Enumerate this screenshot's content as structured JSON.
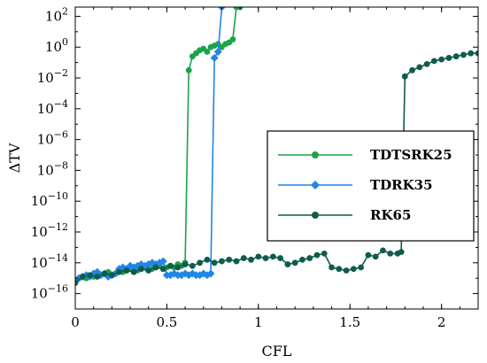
{
  "chart_data": {
    "type": "line",
    "title": "",
    "xlabel": "CFL",
    "ylabel": "ΔTV",
    "xlim": [
      0,
      2.2
    ],
    "ylim_log10": [
      -17,
      2.6
    ],
    "yscale": "log",
    "grid": false,
    "legend_position": "right",
    "x_ticks": [
      {
        "value": 0,
        "label": "0"
      },
      {
        "value": 0.5,
        "label": "0.5"
      },
      {
        "value": 1,
        "label": "1"
      },
      {
        "value": 1.5,
        "label": "1.5"
      },
      {
        "value": 2,
        "label": "2"
      }
    ],
    "y_ticks": [
      {
        "exp": 2,
        "base": "10",
        "sup": "2"
      },
      {
        "exp": 0,
        "base": "10",
        "sup": "0"
      },
      {
        "exp": -2,
        "base": "10",
        "sup": "−2"
      },
      {
        "exp": -4,
        "base": "10",
        "sup": "−4"
      },
      {
        "exp": -6,
        "base": "10",
        "sup": "−6"
      },
      {
        "exp": -8,
        "base": "10",
        "sup": "−8"
      },
      {
        "exp": -10,
        "base": "10",
        "sup": "−10"
      },
      {
        "exp": -12,
        "base": "10",
        "sup": "−12"
      },
      {
        "exp": -14,
        "base": "10",
        "sup": "−14"
      },
      {
        "exp": -16,
        "base": "10",
        "sup": "−16"
      }
    ],
    "series": [
      {
        "name": "TDTSRK25",
        "color": "#1aa34a",
        "marker": "circle",
        "x": [
          0,
          0.02,
          0.04,
          0.06,
          0.08,
          0.1,
          0.12,
          0.14,
          0.16,
          0.18,
          0.2,
          0.22,
          0.24,
          0.26,
          0.28,
          0.3,
          0.32,
          0.34,
          0.36,
          0.38,
          0.4,
          0.42,
          0.44,
          0.46,
          0.48,
          0.5,
          0.52,
          0.54,
          0.56,
          0.58,
          0.6,
          0.62,
          0.64,
          0.66,
          0.68,
          0.7,
          0.72,
          0.74,
          0.76,
          0.78,
          0.8,
          0.82,
          0.84,
          0.86,
          0.88,
          0.9
        ],
        "log10_y": [
          -15.3,
          -15.0,
          -14.9,
          -15.0,
          -14.8,
          -14.9,
          -14.7,
          -14.8,
          -14.7,
          -14.6,
          -14.8,
          -14.7,
          -14.5,
          -14.6,
          -14.5,
          -14.4,
          -14.6,
          -14.5,
          -14.4,
          -14.3,
          -14.5,
          -14.4,
          -14.3,
          -14.2,
          -14.4,
          -14.3,
          -14.2,
          -14.3,
          -14.1,
          -14.2,
          -14.0,
          -1.5,
          -0.6,
          -0.4,
          -0.2,
          -0.1,
          -0.3,
          0.0,
          0.1,
          0.2,
          0.0,
          0.2,
          0.3,
          0.5,
          2.6,
          2.6
        ]
      },
      {
        "name": "TDRK35",
        "color": "#2185e6",
        "marker": "diamond",
        "x": [
          0,
          0.02,
          0.04,
          0.06,
          0.08,
          0.1,
          0.12,
          0.14,
          0.16,
          0.18,
          0.2,
          0.22,
          0.24,
          0.26,
          0.28,
          0.3,
          0.32,
          0.34,
          0.36,
          0.38,
          0.4,
          0.42,
          0.44,
          0.46,
          0.48,
          0.5,
          0.52,
          0.54,
          0.56,
          0.58,
          0.6,
          0.62,
          0.64,
          0.66,
          0.68,
          0.7,
          0.72,
          0.74,
          0.76,
          0.78,
          0.8
        ],
        "log10_y": [
          -15.2,
          -15.0,
          -14.9,
          -14.8,
          -14.9,
          -14.7,
          -14.6,
          -14.8,
          -14.7,
          -14.9,
          -14.8,
          -14.7,
          -14.4,
          -14.3,
          -14.4,
          -14.2,
          -14.3,
          -14.2,
          -14.1,
          -14.2,
          -14.1,
          -14.0,
          -14.1,
          -14.0,
          -13.9,
          -14.8,
          -14.8,
          -14.7,
          -14.8,
          -14.8,
          -14.7,
          -14.8,
          -14.7,
          -14.8,
          -14.8,
          -14.7,
          -14.8,
          -14.7,
          -0.7,
          -0.3,
          2.6
        ]
      },
      {
        "name": "RK65",
        "color": "#0f5c4a",
        "marker": "circle",
        "x": [
          0,
          0.04,
          0.08,
          0.12,
          0.16,
          0.2,
          0.24,
          0.28,
          0.32,
          0.36,
          0.4,
          0.44,
          0.48,
          0.52,
          0.56,
          0.6,
          0.64,
          0.68,
          0.72,
          0.76,
          0.8,
          0.84,
          0.88,
          0.92,
          0.96,
          1.0,
          1.04,
          1.08,
          1.12,
          1.16,
          1.2,
          1.24,
          1.28,
          1.32,
          1.36,
          1.4,
          1.44,
          1.48,
          1.52,
          1.56,
          1.6,
          1.64,
          1.68,
          1.72,
          1.76,
          1.78,
          1.8,
          1.84,
          1.88,
          1.92,
          1.96,
          2.0,
          2.04,
          2.08,
          2.12,
          2.16,
          2.2
        ],
        "log10_y": [
          -15.3,
          -14.9,
          -14.8,
          -14.9,
          -14.7,
          -14.8,
          -14.6,
          -14.5,
          -14.6,
          -14.4,
          -14.5,
          -14.3,
          -14.4,
          -14.2,
          -14.3,
          -14.1,
          -14.2,
          -14.0,
          -13.8,
          -14.0,
          -13.9,
          -13.8,
          -13.9,
          -13.7,
          -13.8,
          -13.6,
          -13.7,
          -13.6,
          -13.7,
          -14.1,
          -14.0,
          -13.8,
          -13.7,
          -13.5,
          -13.4,
          -14.3,
          -14.4,
          -14.5,
          -14.4,
          -14.3,
          -13.5,
          -13.6,
          -13.2,
          -13.4,
          -13.4,
          -13.3,
          -1.9,
          -1.5,
          -1.3,
          -1.1,
          -0.9,
          -0.8,
          -0.7,
          -0.6,
          -0.5,
          -0.4,
          -0.4
        ]
      }
    ]
  }
}
